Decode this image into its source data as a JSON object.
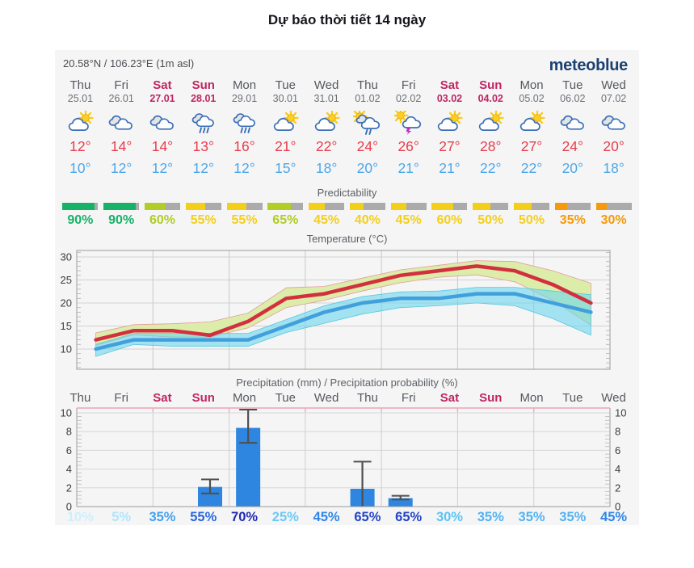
{
  "title": "Dự báo thời tiết 14 ngày",
  "header": {
    "location": "20.58°N / 106.23°E (1m asl)",
    "brand": "meteoblue",
    "brand_color": "#1c4170"
  },
  "labels": {
    "predictability": "Predictability",
    "temperature": "Temperature (°C)",
    "precipitation": "Precipitation (mm) / Precipitation probability (%)"
  },
  "days": [
    {
      "name": "Thu",
      "date": "25.01",
      "weekend": false,
      "icon": "partly-cloudy",
      "tmax": "12°",
      "tmin": "10°",
      "pred": "90%",
      "pred_value": 90,
      "pred_color": "#17b267",
      "prob": "10%",
      "prob_color": "#cfeffc"
    },
    {
      "name": "Fri",
      "date": "26.01",
      "weekend": false,
      "icon": "cloudy",
      "tmax": "14°",
      "tmin": "12°",
      "pred": "90%",
      "pred_value": 90,
      "pred_color": "#17b267",
      "prob": "5%",
      "prob_color": "#b0e6fa"
    },
    {
      "name": "Sat",
      "date": "27.01",
      "weekend": true,
      "icon": "cloudy",
      "tmax": "14°",
      "tmin": "12°",
      "pred": "60%",
      "pred_value": 60,
      "pred_color": "#b3cc27",
      "prob": "35%",
      "prob_color": "#45a1ef"
    },
    {
      "name": "Sun",
      "date": "28.01",
      "weekend": true,
      "icon": "rain",
      "tmax": "13°",
      "tmin": "12°",
      "pred": "55%",
      "pred_value": 55,
      "pred_color": "#f3cf1c",
      "prob": "55%",
      "prob_color": "#2b66dd"
    },
    {
      "name": "Mon",
      "date": "29.01",
      "weekend": false,
      "icon": "rain",
      "tmax": "16°",
      "tmin": "12°",
      "pred": "55%",
      "pred_value": 55,
      "pred_color": "#f3cf1c",
      "prob": "70%",
      "prob_color": "#1f2ab2"
    },
    {
      "name": "Tue",
      "date": "30.01",
      "weekend": false,
      "icon": "partly-cloudy",
      "tmax": "21°",
      "tmin": "15°",
      "pred": "65%",
      "pred_value": 65,
      "pred_color": "#b3cc27",
      "prob": "25%",
      "prob_color": "#6cc9f6"
    },
    {
      "name": "Wed",
      "date": "31.01",
      "weekend": false,
      "icon": "partly-cloudy",
      "tmax": "22°",
      "tmin": "18°",
      "pred": "45%",
      "pred_value": 45,
      "pred_color": "#f3cf1c",
      "prob": "45%",
      "prob_color": "#2f86e8"
    },
    {
      "name": "Thu",
      "date": "01.02",
      "weekend": false,
      "icon": "sun-rain",
      "tmax": "24°",
      "tmin": "20°",
      "pred": "40%",
      "pred_value": 40,
      "pred_color": "#f3cf1c",
      "prob": "65%",
      "prob_color": "#2344c5"
    },
    {
      "name": "Fri",
      "date": "02.02",
      "weekend": false,
      "icon": "thunderstorm",
      "tmax": "26°",
      "tmin": "21°",
      "pred": "45%",
      "pred_value": 45,
      "pred_color": "#f3cf1c",
      "prob": "65%",
      "prob_color": "#2344c5"
    },
    {
      "name": "Sat",
      "date": "03.02",
      "weekend": true,
      "icon": "partly-cloudy",
      "tmax": "27°",
      "tmin": "21°",
      "pred": "60%",
      "pred_value": 60,
      "pred_color": "#f3cf1c",
      "prob": "30%",
      "prob_color": "#5ac5f5"
    },
    {
      "name": "Sun",
      "date": "04.02",
      "weekend": true,
      "icon": "partly-cloudy",
      "tmax": "28°",
      "tmin": "22°",
      "pred": "50%",
      "pred_value": 50,
      "pred_color": "#f3cf1c",
      "prob": "35%",
      "prob_color": "#53b2f2"
    },
    {
      "name": "Mon",
      "date": "05.02",
      "weekend": false,
      "icon": "partly-cloudy",
      "tmax": "27°",
      "tmin": "22°",
      "pred": "50%",
      "pred_value": 50,
      "pred_color": "#f3cf1c",
      "prob": "35%",
      "prob_color": "#53b2f2"
    },
    {
      "name": "Tue",
      "date": "06.02",
      "weekend": false,
      "icon": "cloudy",
      "tmax": "24°",
      "tmin": "20°",
      "pred": "35%",
      "pred_value": 35,
      "pred_color": "#f49a0c",
      "prob": "35%",
      "prob_color": "#53b2f2"
    },
    {
      "name": "Wed",
      "date": "07.02",
      "weekend": false,
      "icon": "cloudy",
      "tmax": "20°",
      "tmin": "18°",
      "pred": "30%",
      "pred_value": 30,
      "pred_color": "#f49a0c",
      "prob": "45%",
      "prob_color": "#2f86e8"
    }
  ],
  "chart_data": [
    {
      "type": "line",
      "title": "Temperature (°C)",
      "categories": [
        "Thu 25.01",
        "Fri 26.01",
        "Sat 27.01",
        "Sun 28.01",
        "Mon 29.01",
        "Tue 30.01",
        "Wed 31.01",
        "Thu 01.02",
        "Fri 02.02",
        "Sat 03.02",
        "Sun 04.02",
        "Mon 05.02",
        "Tue 06.02",
        "Wed 07.02"
      ],
      "ylim": [
        5.5,
        31.5
      ],
      "yticks": [
        10,
        15,
        20,
        25,
        30
      ],
      "grid": true,
      "series": [
        {
          "name": "temp_max",
          "color": "#d2303e",
          "values": [
            12,
            14,
            14,
            13,
            16,
            21,
            22,
            24,
            26,
            27,
            28,
            27,
            24,
            20
          ]
        },
        {
          "name": "temp_max_band_upper",
          "values": [
            13.5,
            15.3,
            15.5,
            15.9,
            17.8,
            23.3,
            23.6,
            25.4,
            27.2,
            28.2,
            29.2,
            29,
            27,
            24.3
          ]
        },
        {
          "name": "temp_max_band_lower",
          "values": [
            10.8,
            13.1,
            12.6,
            12.6,
            14.6,
            19,
            20.6,
            22.6,
            24.4,
            25.6,
            26.1,
            24.6,
            20.6,
            15.2
          ]
        },
        {
          "name": "temp_min",
          "color": "#41a0dc",
          "values": [
            10,
            12,
            12,
            12,
            12,
            15,
            18,
            20,
            21,
            21,
            22,
            22,
            20,
            18
          ]
        },
        {
          "name": "temp_min_band_upper",
          "values": [
            11,
            13.4,
            13.4,
            13.4,
            13.4,
            16.4,
            19.4,
            21.4,
            22.4,
            22.6,
            23.4,
            23.4,
            22.6,
            21.8
          ]
        },
        {
          "name": "temp_min_band_lower",
          "values": [
            8.4,
            11,
            10.6,
            10.6,
            10.6,
            13.6,
            15.6,
            17.6,
            19,
            19.4,
            20,
            19.4,
            16.6,
            13
          ]
        }
      ],
      "band_colors": {
        "max_band": "#dcedaa",
        "min_band": "rgba(108,214,236,0.6)"
      }
    },
    {
      "type": "bar",
      "title": "Precipitation (mm) / Precipitation probability (%)",
      "categories": [
        "Thu",
        "Fri",
        "Sat",
        "Sun",
        "Mon",
        "Tue",
        "Wed",
        "Thu",
        "Fri",
        "Sat",
        "Sun",
        "Mon",
        "Tue",
        "Wed"
      ],
      "ylim": [
        0,
        10.5
      ],
      "yticks": [
        0,
        2,
        4,
        6,
        8,
        10
      ],
      "grid": true,
      "bar_color": "#2f86e0",
      "series": [
        {
          "name": "precipitation_mm",
          "values": [
            0,
            0,
            0,
            2.1,
            8.4,
            0,
            0,
            1.9,
            0.9,
            0,
            0,
            0,
            0,
            0
          ]
        },
        {
          "name": "uncertainty_low",
          "values": [
            null,
            null,
            null,
            1.4,
            6.8,
            null,
            null,
            0.05,
            0.75,
            null,
            null,
            null,
            null,
            null
          ]
        },
        {
          "name": "uncertainty_high",
          "values": [
            null,
            null,
            null,
            2.9,
            10.35,
            null,
            null,
            4.8,
            1.15,
            null,
            null,
            null,
            null,
            null
          ]
        },
        {
          "name": "precipitation_probability_pct",
          "values": [
            10,
            5,
            35,
            55,
            70,
            25,
            45,
            65,
            65,
            30,
            35,
            35,
            35,
            45
          ]
        }
      ]
    }
  ],
  "ui_colors": {
    "widget_bg": "#f5f5f6",
    "weekend": "#c02561",
    "temp_high_text": "#e83c4c",
    "temp_low_text": "#4da7e8",
    "pred_bar_rest": "#ababab",
    "precip_top_line": "#f0a2b4"
  }
}
